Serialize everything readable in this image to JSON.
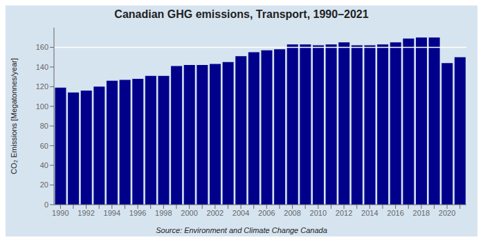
{
  "chart_data": {
    "type": "bar",
    "title": "Canadian GHG emissions, Transport, 1990–2021",
    "ylabel": "CO₂ Emissions [Megatonnes/year]",
    "annotation": "Source: Environment and Climate Change Canada",
    "categories": [
      "1990",
      null,
      "1992",
      null,
      "1994",
      null,
      "1996",
      null,
      "1998",
      null,
      "2000",
      null,
      "2002",
      null,
      "2004",
      null,
      "2006",
      null,
      "2008",
      null,
      "2010",
      null,
      "2012",
      null,
      "2014",
      null,
      "2016",
      null,
      "2018",
      null,
      "2020",
      null
    ],
    "values": [
      119,
      114,
      116,
      120,
      126,
      127,
      128,
      131,
      131,
      141,
      142,
      142,
      143,
      145,
      151,
      155,
      157,
      158,
      163,
      163,
      162,
      163,
      165,
      162,
      162,
      163,
      165,
      169,
      170,
      170,
      144,
      150
    ],
    "color": "#00008B",
    "ylim": [
      0,
      180
    ],
    "yticks": [
      0,
      20,
      40,
      60,
      80,
      100,
      120,
      140,
      160
    ],
    "reference_line": {
      "y": 160,
      "color": "#ffffff"
    },
    "grid": false
  }
}
